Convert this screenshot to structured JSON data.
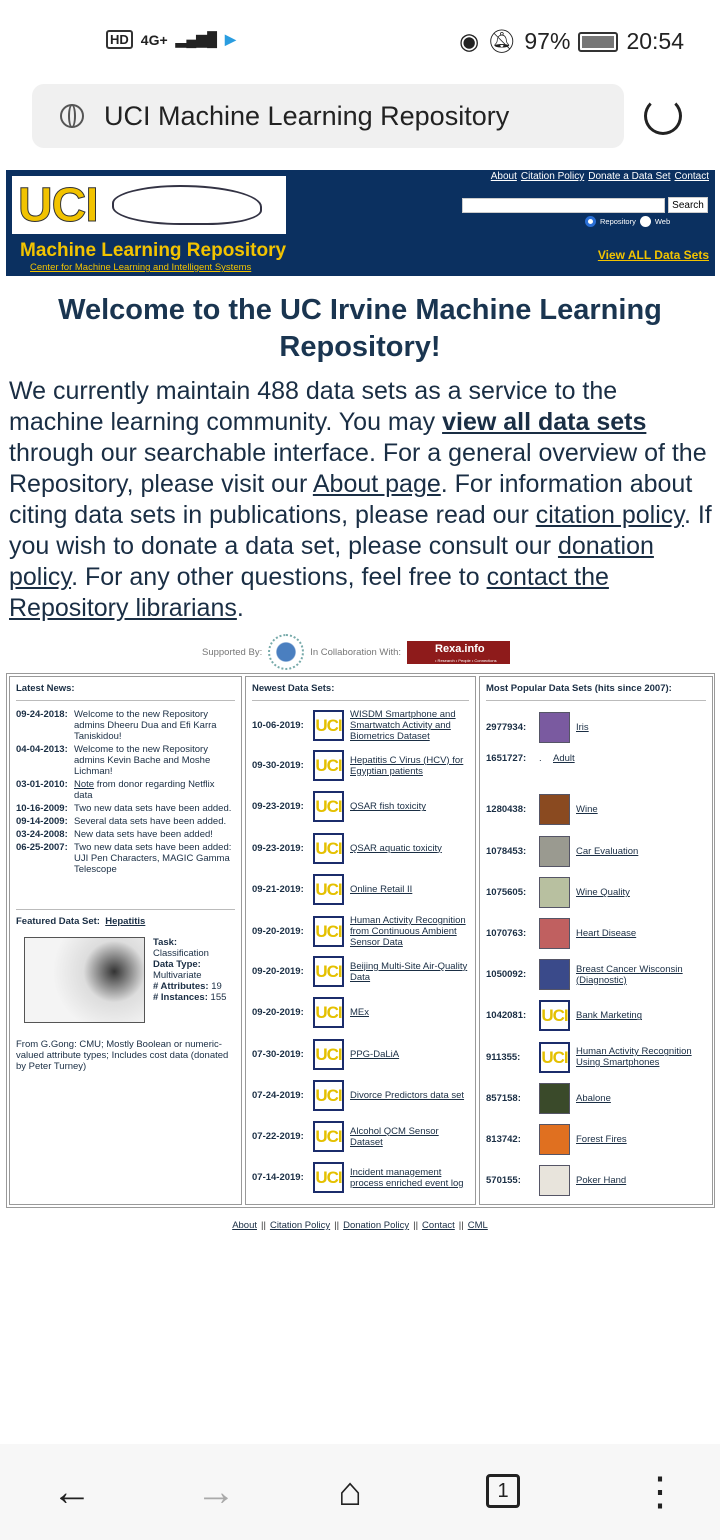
{
  "status": {
    "left_badges": [
      "HD",
      "4G+"
    ],
    "battery": "97%",
    "time": "20:54"
  },
  "browser": {
    "url_title": "UCI Machine Learning Repository",
    "tab_count": "1"
  },
  "header": {
    "logo_text": "UCI",
    "title": "Machine Learning Repository",
    "subtitle": "Center for Machine Learning and Intelligent Systems",
    "links": [
      "About",
      "Citation Policy",
      "Donate a Data Set",
      "Contact"
    ],
    "search_button": "Search",
    "search_value": "",
    "radio_options": [
      "Repository",
      "Web"
    ],
    "radio_selected": "Repository",
    "view_all": "View ALL Data Sets",
    "colors": {
      "banner": "#0b3060",
      "accent": "#f2c300"
    }
  },
  "welcome": {
    "title": "Welcome to the UC Irvine Machine Learning Repository!",
    "p1": "We currently maintain 488 data sets as a service to the machine learning community. You may ",
    "link1": "view all data sets",
    "p2": " through our searchable interface. For a general overview of the Repository, please visit our ",
    "link2": "About page",
    "p3": ". For information about citing data sets in publications, please read our ",
    "link3": "citation policy",
    "p4": ". If you wish to donate a data set, please consult our ",
    "link4": "donation policy",
    "p5": ". For any other questions, feel free to ",
    "link5": "contact the Repository librarians",
    "p6": "."
  },
  "support": {
    "supported_by": "Supported By:",
    "collab": "In Collaboration With:",
    "rexa": "Rexa.info",
    "rexa_tag": "• Research • People • Connections"
  },
  "news": {
    "title": "Latest News:",
    "items": [
      {
        "date": "09-24-2018:",
        "text": "Welcome to the new Repository admins Dheeru Dua and Efi Karra Taniskidou!"
      },
      {
        "date": "04-04-2013:",
        "text": "Welcome to the new Repository admins Kevin Bache and Moshe Lichman!"
      },
      {
        "date": "03-01-2010:",
        "link": "Note",
        "text": " from donor regarding Netflix data"
      },
      {
        "date": "10-16-2009:",
        "text": "Two new data sets have been added."
      },
      {
        "date": "09-14-2009:",
        "text": "Several data sets have been added."
      },
      {
        "date": "03-24-2008:",
        "text": "New data sets have been added!"
      },
      {
        "date": "06-25-2007:",
        "text": "Two new data sets have been added: UJI Pen Characters, MAGIC Gamma Telescope"
      }
    ]
  },
  "featured": {
    "label": "Featured Data Set:",
    "name": "Hepatitis",
    "task_label": "Task:",
    "task": "Classification",
    "type_label": "Data Type:",
    "type": "Multivariate",
    "attr_label": "# Attributes:",
    "attr": "19",
    "inst_label": "# Instances:",
    "inst": "155",
    "desc": "From G.Gong: CMU; Mostly Boolean or numeric-valued attribute types; Includes cost data (donated by Peter Turney)"
  },
  "newest": {
    "title": "Newest Data Sets:",
    "items": [
      {
        "date": "10-06-2019:",
        "name": "WISDM Smartphone and Smartwatch Activity and Biometrics Dataset"
      },
      {
        "date": "09-30-2019:",
        "name": "Hepatitis C Virus (HCV) for Egyptian patients"
      },
      {
        "date": "09-23-2019:",
        "name": "QSAR fish toxicity"
      },
      {
        "date": "09-23-2019:",
        "name": "QSAR aquatic toxicity"
      },
      {
        "date": "09-21-2019:",
        "name": "Online Retail II"
      },
      {
        "date": "09-20-2019:",
        "name": "Human Activity Recognition from Continuous Ambient Sensor Data"
      },
      {
        "date": "09-20-2019:",
        "name": "Beijing Multi-Site Air-Quality Data"
      },
      {
        "date": "09-20-2019:",
        "name": "MEx"
      },
      {
        "date": "07-30-2019:",
        "name": "PPG-DaLiA"
      },
      {
        "date": "07-24-2019:",
        "name": "Divorce Predictors data set"
      },
      {
        "date": "07-22-2019:",
        "name": "Alcohol QCM Sensor Dataset"
      },
      {
        "date": "07-14-2019:",
        "name": "Incident management process enriched event log"
      }
    ]
  },
  "popular": {
    "title": "Most Popular Data Sets (hits since 2007):",
    "items": [
      {
        "hits": "2977934:",
        "name": "Iris",
        "thumb": "#7a5aa0"
      },
      {
        "hits": "1651727:",
        "name": "Adult",
        "thumb": ""
      },
      {
        "hits": "1280438:",
        "name": "Wine",
        "thumb": "#8a4a20"
      },
      {
        "hits": "1078453:",
        "name": "Car Evaluation",
        "thumb": "#9a9a90"
      },
      {
        "hits": "1075605:",
        "name": "Wine Quality",
        "thumb": "#b8c0a0"
      },
      {
        "hits": "1070763:",
        "name": "Heart Disease",
        "thumb": "#c06060"
      },
      {
        "hits": "1050092:",
        "name": "Breast Cancer Wisconsin (Diagnostic)",
        "thumb": "#3a4a8a"
      },
      {
        "hits": "1042081:",
        "name": "Bank Marketing",
        "thumb": "uci"
      },
      {
        "hits": "911355:",
        "name": "Human Activity Recognition Using Smartphones",
        "thumb": "uci"
      },
      {
        "hits": "857158:",
        "name": "Abalone",
        "thumb": "#3a4a2a"
      },
      {
        "hits": "813742:",
        "name": "Forest Fires",
        "thumb": "#e07020"
      },
      {
        "hits": "570155:",
        "name": "Poker Hand",
        "thumb": "#e8e4dc"
      }
    ]
  },
  "footer": {
    "links": [
      "About",
      "Citation Policy",
      "Donation Policy",
      "Contact",
      "CML"
    ],
    "sep": "||"
  }
}
